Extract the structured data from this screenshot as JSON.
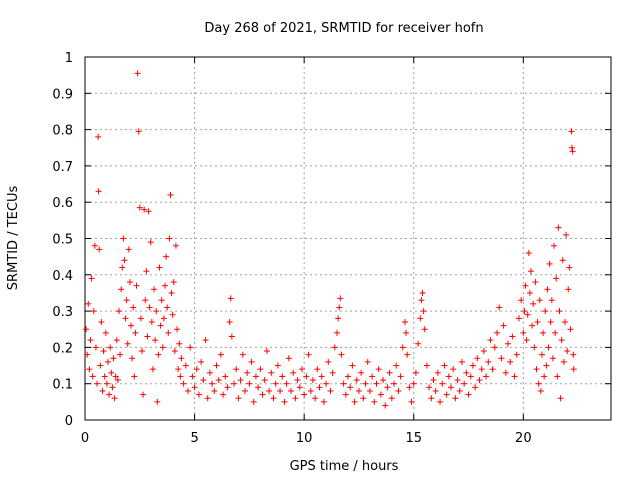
{
  "chart_data": {
    "type": "scatter",
    "title": "Day 268 of 2021, SRMTID for receiver hofn",
    "xlabel": "GPS time / hours",
    "ylabel": "SRMTID / TECUs",
    "xlim": [
      0,
      24
    ],
    "ylim": [
      0,
      1
    ],
    "xticks": [
      0,
      5,
      10,
      15,
      20
    ],
    "yticks": [
      0,
      0.1,
      0.2,
      0.3,
      0.4,
      0.5,
      0.6,
      0.7,
      0.8,
      0.9,
      1
    ],
    "ytick_labels": [
      "0",
      "0.1",
      "0.2",
      "0.3",
      "0.4",
      "0.5",
      "0.6",
      "0.7",
      "0.8",
      "0.9",
      "1"
    ],
    "grid": true,
    "marker": "+",
    "color": "#ff0000",
    "series": [
      {
        "name": "SRMTID",
        "points": [
          [
            0.05,
            0.25
          ],
          [
            0.1,
            0.18
          ],
          [
            0.15,
            0.32
          ],
          [
            0.2,
            0.14
          ],
          [
            0.25,
            0.22
          ],
          [
            0.3,
            0.39
          ],
          [
            0.35,
            0.12
          ],
          [
            0.4,
            0.3
          ],
          [
            0.45,
            0.48
          ],
          [
            0.5,
            0.2
          ],
          [
            0.55,
            0.1
          ],
          [
            0.6,
            0.78
          ],
          [
            0.62,
            0.63
          ],
          [
            0.65,
            0.47
          ],
          [
            0.7,
            0.15
          ],
          [
            0.75,
            0.27
          ],
          [
            0.8,
            0.08
          ],
          [
            0.85,
            0.19
          ],
          [
            0.9,
            0.12
          ],
          [
            0.95,
            0.24
          ],
          [
            1.0,
            0.1
          ],
          [
            1.05,
            0.16
          ],
          [
            1.1,
            0.07
          ],
          [
            1.15,
            0.2
          ],
          [
            1.2,
            0.13
          ],
          [
            1.25,
            0.09
          ],
          [
            1.3,
            0.17
          ],
          [
            1.35,
            0.06
          ],
          [
            1.4,
            0.12
          ],
          [
            1.45,
            0.22
          ],
          [
            1.5,
            0.11
          ],
          [
            1.55,
            0.3
          ],
          [
            1.6,
            0.18
          ],
          [
            1.65,
            0.36
          ],
          [
            1.7,
            0.42
          ],
          [
            1.75,
            0.5
          ],
          [
            1.8,
            0.44
          ],
          [
            1.85,
            0.28
          ],
          [
            1.9,
            0.33
          ],
          [
            1.95,
            0.21
          ],
          [
            2.0,
            0.47
          ],
          [
            2.05,
            0.38
          ],
          [
            2.1,
            0.26
          ],
          [
            2.15,
            0.17
          ],
          [
            2.2,
            0.31
          ],
          [
            2.25,
            0.12
          ],
          [
            2.3,
            0.24
          ],
          [
            2.35,
            0.37
          ],
          [
            2.4,
            0.955
          ],
          [
            2.45,
            0.795
          ],
          [
            2.5,
            0.585
          ],
          [
            2.55,
            0.28
          ],
          [
            2.6,
            0.19
          ],
          [
            2.65,
            0.07
          ],
          [
            2.7,
            0.58
          ],
          [
            2.75,
            0.33
          ],
          [
            2.8,
            0.41
          ],
          [
            2.85,
            0.23
          ],
          [
            2.9,
            0.575
          ],
          [
            2.95,
            0.31
          ],
          [
            3.0,
            0.49
          ],
          [
            3.05,
            0.27
          ],
          [
            3.1,
            0.14
          ],
          [
            3.15,
            0.36
          ],
          [
            3.2,
            0.22
          ],
          [
            3.25,
            0.3
          ],
          [
            3.3,
            0.05
          ],
          [
            3.35,
            0.18
          ],
          [
            3.4,
            0.42
          ],
          [
            3.45,
            0.26
          ],
          [
            3.5,
            0.33
          ],
          [
            3.55,
            0.2
          ],
          [
            3.6,
            0.28
          ],
          [
            3.65,
            0.37
          ],
          [
            3.7,
            0.45
          ],
          [
            3.75,
            0.31
          ],
          [
            3.8,
            0.24
          ],
          [
            3.85,
            0.5
          ],
          [
            3.9,
            0.62
          ],
          [
            3.95,
            0.35
          ],
          [
            4.0,
            0.29
          ],
          [
            4.05,
            0.38
          ],
          [
            4.1,
            0.19
          ],
          [
            4.15,
            0.48
          ],
          [
            4.2,
            0.25
          ],
          [
            4.25,
            0.14
          ],
          [
            4.3,
            0.21
          ],
          [
            4.35,
            0.12
          ],
          [
            4.4,
            0.17
          ],
          [
            4.5,
            0.1
          ],
          [
            4.6,
            0.15
          ],
          [
            4.7,
            0.08
          ],
          [
            4.8,
            0.2
          ],
          [
            4.9,
            0.12
          ],
          [
            5.0,
            0.09
          ],
          [
            5.1,
            0.14
          ],
          [
            5.2,
            0.07
          ],
          [
            5.3,
            0.16
          ],
          [
            5.4,
            0.11
          ],
          [
            5.5,
            0.22
          ],
          [
            5.6,
            0.06
          ],
          [
            5.7,
            0.13
          ],
          [
            5.8,
            0.1
          ],
          [
            5.9,
            0.08
          ],
          [
            6.0,
            0.15
          ],
          [
            6.1,
            0.11
          ],
          [
            6.2,
            0.18
          ],
          [
            6.3,
            0.07
          ],
          [
            6.4,
            0.12
          ],
          [
            6.5,
            0.09
          ],
          [
            6.6,
            0.27
          ],
          [
            6.65,
            0.335
          ],
          [
            6.7,
            0.23
          ],
          [
            6.8,
            0.1
          ],
          [
            6.9,
            0.14
          ],
          [
            7.0,
            0.06
          ],
          [
            7.1,
            0.11
          ],
          [
            7.2,
            0.18
          ],
          [
            7.3,
            0.08
          ],
          [
            7.4,
            0.13
          ],
          [
            7.5,
            0.1
          ],
          [
            7.6,
            0.16
          ],
          [
            7.7,
            0.05
          ],
          [
            7.8,
            0.12
          ],
          [
            7.9,
            0.09
          ],
          [
            8.0,
            0.14
          ],
          [
            8.1,
            0.07
          ],
          [
            8.2,
            0.11
          ],
          [
            8.3,
            0.19
          ],
          [
            8.4,
            0.08
          ],
          [
            8.5,
            0.13
          ],
          [
            8.6,
            0.06
          ],
          [
            8.7,
            0.1
          ],
          [
            8.8,
            0.15
          ],
          [
            8.9,
            0.08
          ],
          [
            9.0,
            0.12
          ],
          [
            9.1,
            0.05
          ],
          [
            9.2,
            0.1
          ],
          [
            9.3,
            0.17
          ],
          [
            9.4,
            0.08
          ],
          [
            9.5,
            0.13
          ],
          [
            9.6,
            0.06
          ],
          [
            9.7,
            0.11
          ],
          [
            9.8,
            0.09
          ],
          [
            9.9,
            0.14
          ],
          [
            10.0,
            0.07
          ],
          [
            10.1,
            0.12
          ],
          [
            10.2,
            0.18
          ],
          [
            10.3,
            0.08
          ],
          [
            10.4,
            0.11
          ],
          [
            10.5,
            0.06
          ],
          [
            10.6,
            0.14
          ],
          [
            10.7,
            0.09
          ],
          [
            10.8,
            0.12
          ],
          [
            10.9,
            0.05
          ],
          [
            11.0,
            0.1
          ],
          [
            11.1,
            0.16
          ],
          [
            11.2,
            0.08
          ],
          [
            11.3,
            0.13
          ],
          [
            11.4,
            0.2
          ],
          [
            11.5,
            0.24
          ],
          [
            11.55,
            0.28
          ],
          [
            11.6,
            0.31
          ],
          [
            11.65,
            0.335
          ],
          [
            11.7,
            0.18
          ],
          [
            11.8,
            0.1
          ],
          [
            11.9,
            0.07
          ],
          [
            12.0,
            0.12
          ],
          [
            12.1,
            0.09
          ],
          [
            12.2,
            0.15
          ],
          [
            12.3,
            0.05
          ],
          [
            12.4,
            0.11
          ],
          [
            12.5,
            0.08
          ],
          [
            12.6,
            0.13
          ],
          [
            12.7,
            0.06
          ],
          [
            12.8,
            0.1
          ],
          [
            12.9,
            0.16
          ],
          [
            13.0,
            0.08
          ],
          [
            13.1,
            0.12
          ],
          [
            13.2,
            0.05
          ],
          [
            13.3,
            0.1
          ],
          [
            13.4,
            0.14
          ],
          [
            13.5,
            0.07
          ],
          [
            13.6,
            0.11
          ],
          [
            13.7,
            0.04
          ],
          [
            13.8,
            0.09
          ],
          [
            13.9,
            0.13
          ],
          [
            14.0,
            0.06
          ],
          [
            14.1,
            0.1
          ],
          [
            14.2,
            0.15
          ],
          [
            14.3,
            0.08
          ],
          [
            14.4,
            0.12
          ],
          [
            14.5,
            0.2
          ],
          [
            14.6,
            0.27
          ],
          [
            14.65,
            0.24
          ],
          [
            14.7,
            0.18
          ],
          [
            14.8,
            0.09
          ],
          [
            14.9,
            0.05
          ],
          [
            15.0,
            0.1
          ],
          [
            15.1,
            0.13
          ],
          [
            15.2,
            0.21
          ],
          [
            15.3,
            0.28
          ],
          [
            15.35,
            0.33
          ],
          [
            15.4,
            0.35
          ],
          [
            15.45,
            0.3
          ],
          [
            15.5,
            0.25
          ],
          [
            15.6,
            0.15
          ],
          [
            15.7,
            0.09
          ],
          [
            15.8,
            0.06
          ],
          [
            15.9,
            0.11
          ],
          [
            16.0,
            0.08
          ],
          [
            16.1,
            0.13
          ],
          [
            16.2,
            0.05
          ],
          [
            16.3,
            0.1
          ],
          [
            16.4,
            0.15
          ],
          [
            16.5,
            0.07
          ],
          [
            16.6,
            0.12
          ],
          [
            16.7,
            0.09
          ],
          [
            16.8,
            0.14
          ],
          [
            16.9,
            0.06
          ],
          [
            17.0,
            0.11
          ],
          [
            17.1,
            0.08
          ],
          [
            17.2,
            0.16
          ],
          [
            17.3,
            0.1
          ],
          [
            17.4,
            0.13
          ],
          [
            17.5,
            0.07
          ],
          [
            17.6,
            0.12
          ],
          [
            17.7,
            0.15
          ],
          [
            17.8,
            0.09
          ],
          [
            17.9,
            0.17
          ],
          [
            18.0,
            0.11
          ],
          [
            18.1,
            0.14
          ],
          [
            18.2,
            0.19
          ],
          [
            18.3,
            0.12
          ],
          [
            18.4,
            0.16
          ],
          [
            18.5,
            0.22
          ],
          [
            18.6,
            0.14
          ],
          [
            18.7,
            0.2
          ],
          [
            18.8,
            0.24
          ],
          [
            18.9,
            0.31
          ],
          [
            19.0,
            0.17
          ],
          [
            19.1,
            0.26
          ],
          [
            19.2,
            0.13
          ],
          [
            19.3,
            0.21
          ],
          [
            19.4,
            0.16
          ],
          [
            19.5,
            0.23
          ],
          [
            19.6,
            0.12
          ],
          [
            19.7,
            0.18
          ],
          [
            19.8,
            0.28
          ],
          [
            19.9,
            0.33
          ],
          [
            20.0,
            0.24
          ],
          [
            20.05,
            0.3
          ],
          [
            20.1,
            0.37
          ],
          [
            20.15,
            0.22
          ],
          [
            20.2,
            0.29
          ],
          [
            20.25,
            0.46
          ],
          [
            20.3,
            0.35
          ],
          [
            20.35,
            0.41
          ],
          [
            20.4,
            0.26
          ],
          [
            20.45,
            0.32
          ],
          [
            20.5,
            0.2
          ],
          [
            20.55,
            0.38
          ],
          [
            20.6,
            0.14
          ],
          [
            20.65,
            0.27
          ],
          [
            20.7,
            0.1
          ],
          [
            20.75,
            0.33
          ],
          [
            20.8,
            0.08
          ],
          [
            20.85,
            0.18
          ],
          [
            20.9,
            0.24
          ],
          [
            20.95,
            0.12
          ],
          [
            21.0,
            0.3
          ],
          [
            21.05,
            0.15
          ],
          [
            21.1,
            0.36
          ],
          [
            21.15,
            0.2
          ],
          [
            21.2,
            0.43
          ],
          [
            21.25,
            0.27
          ],
          [
            21.3,
            0.33
          ],
          [
            21.35,
            0.17
          ],
          [
            21.4,
            0.48
          ],
          [
            21.45,
            0.24
          ],
          [
            21.5,
            0.39
          ],
          [
            21.55,
            0.12
          ],
          [
            21.6,
            0.53
          ],
          [
            21.65,
            0.3
          ],
          [
            21.7,
            0.06
          ],
          [
            21.75,
            0.22
          ],
          [
            21.8,
            0.44
          ],
          [
            21.85,
            0.16
          ],
          [
            21.9,
            0.27
          ],
          [
            21.95,
            0.51
          ],
          [
            22.0,
            0.19
          ],
          [
            22.05,
            0.36
          ],
          [
            22.1,
            0.42
          ],
          [
            22.15,
            0.25
          ],
          [
            22.2,
            0.795
          ],
          [
            22.22,
            0.75
          ],
          [
            22.25,
            0.74
          ],
          [
            22.28,
            0.18
          ],
          [
            22.3,
            0.14
          ]
        ]
      }
    ]
  }
}
